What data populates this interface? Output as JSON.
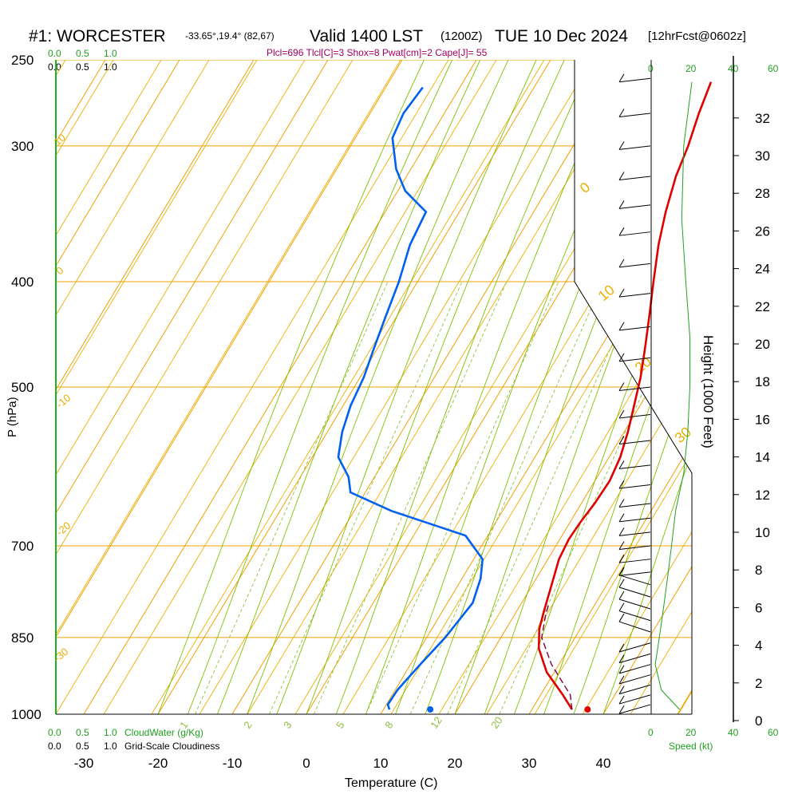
{
  "header": {
    "station": "#1: WORCESTER",
    "coords": "-33.65°,19.4° (82,67)",
    "valid": "Valid 1400 LST",
    "utc": "(1200Z)",
    "date": "TUE 10 Dec 2024",
    "forecast": "[12hrFcst@0602z]",
    "params": "Plcl=696 Tlcl[C]=3 Shox=8 Pwat[cm]=2 Cape[J]= 55"
  },
  "axes": {
    "xlabel": "Temperature (C)",
    "ylabel": "P (hPa)",
    "height_label": "Height (1000 Feet)",
    "speed_label": "Speed (kt)"
  },
  "scales": {
    "cloud_water_label": "CloudWater (g/Kg)",
    "cloudiness_label": "Grid-Scale Cloudiness",
    "cloud_ticks_green": [
      "0.0",
      "0.5",
      "1.0"
    ],
    "cloud_ticks_black": [
      "0.0",
      "0.5",
      "1.0"
    ],
    "speed_ticks": [
      "0",
      "20",
      "40",
      "60"
    ]
  },
  "colors": {
    "temperature": "#e00000",
    "dewpoint": "#0060f0",
    "parcel": "#800040",
    "isotherm": "#f0a000",
    "dry_adiabat": "#e8b000",
    "moist_adiabat": "#80c000",
    "mixing_ratio": "#90c040",
    "wind_speed": "#20a020",
    "header_params": "#a00060"
  },
  "chart_data": {
    "type": "line",
    "title": "#1: WORCESTER",
    "xlabel": "Temperature (C)",
    "ylabel": "P (hPa)",
    "xlim": [
      -35,
      45
    ],
    "ylim": [
      1000,
      250
    ],
    "y_scale": "log",
    "grid": true,
    "x_ticks": [
      "-30",
      "-20",
      "-10",
      "0",
      "10",
      "20",
      "30",
      "40"
    ],
    "pressure_ticks": [
      "250",
      "300",
      "400",
      "500",
      "700",
      "850",
      "1000"
    ],
    "height_ticks": [
      "0",
      "2",
      "4",
      "6",
      "8",
      "10",
      "12",
      "14",
      "16",
      "18",
      "20",
      "22",
      "24",
      "26",
      "28",
      "30",
      "32"
    ],
    "dry_adiabat_labels": [
      "10",
      "0",
      "-10",
      "-20",
      "-30",
      "0",
      "10",
      "20",
      "30"
    ],
    "mixing_ratio_labels": [
      "1",
      "2",
      "3",
      "5",
      "8",
      "12",
      "20"
    ],
    "series": [
      {
        "name": "Temperature",
        "points": [
          [
            35.4,
            990
          ],
          [
            33,
            960
          ],
          [
            29,
            915
          ],
          [
            26,
            870
          ],
          [
            24.5,
            835
          ],
          [
            23.7,
            805
          ],
          [
            22.7,
            765
          ],
          [
            21.5,
            720
          ],
          [
            21.2,
            690
          ],
          [
            21.4,
            665
          ],
          [
            21.8,
            640
          ],
          [
            22.0,
            610
          ],
          [
            21.5,
            580
          ],
          [
            20.5,
            550
          ],
          [
            19.2,
            520
          ],
          [
            17.8,
            490
          ],
          [
            16.0,
            460
          ],
          [
            14.0,
            430
          ],
          [
            11.8,
            400
          ],
          [
            9.5,
            370
          ],
          [
            7.8,
            345
          ],
          [
            6.3,
            320
          ],
          [
            5.5,
            300
          ],
          [
            4.3,
            280
          ],
          [
            3.4,
            262
          ]
        ]
      },
      {
        "name": "Dewpoint",
        "points": [
          [
            10.8,
            990
          ],
          [
            10.2,
            980
          ],
          [
            10.3,
            950
          ],
          [
            11.3,
            900
          ],
          [
            12.5,
            850
          ],
          [
            13.4,
            790
          ],
          [
            12.5,
            750
          ],
          [
            11.2,
            720
          ],
          [
            7.0,
            685
          ],
          [
            -5,
            650
          ],
          [
            -12,
            625
          ],
          [
            -13.5,
            605
          ],
          [
            -16.5,
            580
          ],
          [
            -18,
            550
          ],
          [
            -19,
            520
          ],
          [
            -19.5,
            490
          ],
          [
            -20.5,
            460
          ],
          [
            -21.5,
            430
          ],
          [
            -22.5,
            400
          ],
          [
            -24,
            370
          ],
          [
            -24.5,
            345
          ],
          [
            -29,
            330
          ],
          [
            -32,
            315
          ],
          [
            -35,
            295
          ],
          [
            -35.5,
            280
          ],
          [
            -35,
            265
          ]
        ]
      },
      {
        "name": "Parcel",
        "points": [
          [
            35.4,
            990
          ],
          [
            34,
            960
          ],
          [
            29,
            900
          ],
          [
            25.5,
            850
          ],
          [
            24.2,
            810
          ],
          [
            23.7,
            790
          ]
        ]
      }
    ],
    "surface_markers": [
      {
        "name": "surface-temperature",
        "t": 37.5,
        "p": 990
      },
      {
        "name": "surface-dewpoint",
        "t": 16.3,
        "p": 990
      }
    ],
    "wind_speed_kt": [
      [
        14,
        990
      ],
      [
        5,
        950
      ],
      [
        2,
        900
      ],
      [
        4,
        850
      ],
      [
        6,
        800
      ],
      [
        8,
        750
      ],
      [
        10,
        700
      ],
      [
        12,
        650
      ],
      [
        16,
        600
      ],
      [
        18,
        550
      ],
      [
        19,
        500
      ],
      [
        19,
        450
      ],
      [
        17,
        400
      ],
      [
        15,
        350
      ],
      [
        16,
        300
      ],
      [
        20,
        262
      ]
    ]
  }
}
